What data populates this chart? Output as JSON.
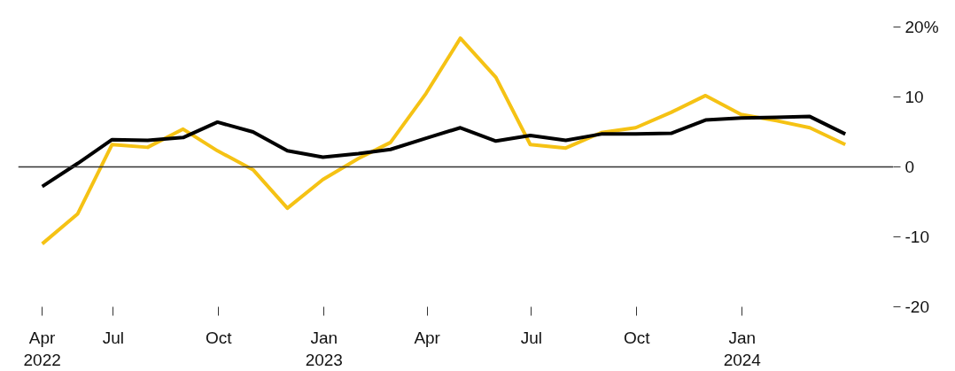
{
  "chart_data": {
    "type": "line",
    "x": [
      "2022-04-30",
      "2022-05-31",
      "2022-06-30",
      "2022-07-31",
      "2022-08-31",
      "2022-09-30",
      "2022-10-31",
      "2022-11-30",
      "2022-12-31",
      "2023-01-31",
      "2023-02-28",
      "2023-03-31",
      "2023-04-30",
      "2023-05-31",
      "2023-06-30",
      "2023-07-31",
      "2023-08-31",
      "2023-09-30",
      "2023-10-31",
      "2023-11-30",
      "2023-12-31",
      "2024-01-31",
      "2024-02-29",
      "2024-03-31"
    ],
    "series": [
      {
        "color": "#f5c214",
        "values": [
          -11.0,
          -6.7,
          3.2,
          2.8,
          5.4,
          2.3,
          -0.4,
          -5.9,
          -1.8,
          1.2,
          3.5,
          10.5,
          18.4,
          12.8,
          3.2,
          2.7,
          4.9,
          5.6,
          7.8,
          10.2,
          7.5,
          6.6,
          5.6,
          3.2
        ]
      },
      {
        "color": "#000000",
        "values": [
          -2.8,
          0.5,
          3.9,
          3.8,
          4.2,
          6.4,
          5.0,
          2.3,
          1.4,
          1.9,
          2.5,
          4.1,
          5.6,
          3.7,
          4.5,
          3.8,
          4.7,
          4.7,
          4.8,
          6.7,
          7.0,
          7.1,
          7.2,
          4.7
        ]
      }
    ],
    "xlim": [
      "2022-04-09",
      "2024-05-12"
    ],
    "xticks": [
      {
        "value": "2022-04-30",
        "label": "Apr\n2022"
      },
      {
        "value": "2022-07-01",
        "label": "Jul"
      },
      {
        "value": "2022-10-01",
        "label": "Oct"
      },
      {
        "value": "2023-01-01",
        "label": "Jan\n2023"
      },
      {
        "value": "2023-04-01",
        "label": "Apr"
      },
      {
        "value": "2023-07-01",
        "label": "Jul"
      },
      {
        "value": "2023-10-01",
        "label": "Oct"
      },
      {
        "value": "2024-01-01",
        "label": "Jan\n2024"
      }
    ],
    "ylim": [
      -20,
      20
    ],
    "yticks": [
      {
        "value": 20,
        "label": "20%"
      },
      10,
      0,
      -10,
      -20
    ],
    "ref_lines": [
      {
        "axis": "y",
        "value": 0,
        "color": "#333333"
      }
    ],
    "grid": false,
    "marker": "none",
    "line_style": "solid"
  }
}
